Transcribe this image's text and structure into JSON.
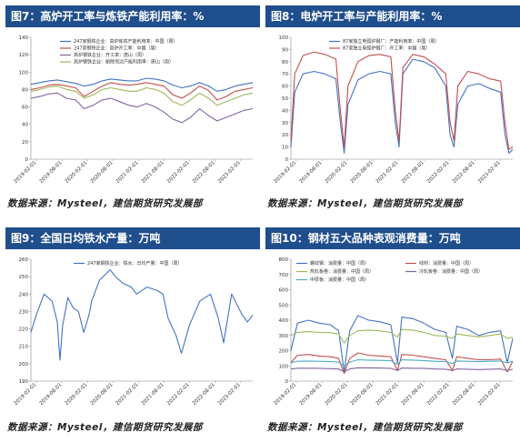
{
  "source_text": "数据来源：Mysteel，建信期货研究发展部",
  "chart_data": [
    {
      "id": "c7",
      "type": "line",
      "title": "图7：高炉开工率与炼铁产能利用率：%",
      "ylim": [
        0,
        140
      ],
      "yticks": [
        0,
        20,
        40,
        60,
        80,
        100,
        120,
        140
      ],
      "xlabels": [
        "2019-02-01",
        "2019-08-01",
        "2020-02-01",
        "2020-08-01",
        "2021-02-01",
        "2021-08-01",
        "2022-02-01",
        "2022-08-01",
        "2023-02-01"
      ],
      "x": [
        2019.08,
        2019.25,
        2019.42,
        2019.58,
        2019.75,
        2019.92,
        2020.08,
        2020.25,
        2020.42,
        2020.58,
        2020.75,
        2020.92,
        2021.08,
        2021.25,
        2021.42,
        2021.58,
        2021.75,
        2021.92,
        2022.08,
        2022.25,
        2022.42,
        2022.58,
        2022.75,
        2022.92,
        2023.08,
        2023.25
      ],
      "legend_position": "top-left",
      "grid": false,
      "series": [
        {
          "name": "247家钢铁企业：高炉炼铁产能利用率：中国（周）",
          "color": "#4472c4",
          "values": [
            86,
            88,
            90,
            91,
            89,
            87,
            84,
            86,
            90,
            92,
            91,
            90,
            90,
            93,
            92,
            90,
            85,
            82,
            84,
            88,
            84,
            78,
            80,
            84,
            86,
            88
          ]
        },
        {
          "name": "247家钢铁企业：高炉开工率：中国（周）",
          "color": "#c0504d",
          "values": [
            80,
            82,
            85,
            86,
            84,
            82,
            72,
            78,
            84,
            88,
            86,
            85,
            86,
            88,
            86,
            84,
            74,
            70,
            76,
            84,
            79,
            68,
            72,
            78,
            80,
            82
          ]
        },
        {
          "name": "高炉钢铁企业：开工率：唐山（周）",
          "color": "#8064a2",
          "values": [
            70,
            72,
            75,
            76,
            70,
            68,
            58,
            62,
            68,
            70,
            66,
            62,
            60,
            64,
            60,
            54,
            46,
            42,
            48,
            58,
            50,
            44,
            48,
            52,
            56,
            58
          ]
        },
        {
          "name": "高炉钢铁企业：剔除淘汰产能利用率：唐山（周）",
          "color": "#9bbb59",
          "values": [
            78,
            80,
            83,
            84,
            80,
            78,
            70,
            74,
            80,
            82,
            80,
            78,
            78,
            82,
            80,
            76,
            66,
            62,
            68,
            76,
            70,
            62,
            66,
            70,
            74,
            76
          ]
        }
      ]
    },
    {
      "id": "c8",
      "type": "line",
      "title": "图8：电炉开工率与产能利用率：%",
      "ylim": [
        0,
        100
      ],
      "yticks": [
        0,
        10,
        20,
        30,
        40,
        50,
        60,
        70,
        80,
        90,
        100
      ],
      "xlabels": [
        "2019-02-01",
        "2019-08-01",
        "2020-02-01",
        "2020-08-01",
        "2021-02-01",
        "2021-08-01",
        "2022-02-01",
        "2022-08-01",
        "2023-02-01"
      ],
      "x": [
        2019.08,
        2019.15,
        2019.3,
        2019.5,
        2019.7,
        2019.9,
        2019.98,
        2020.05,
        2020.12,
        2020.3,
        2020.5,
        2020.7,
        2020.9,
        2020.98,
        2021.05,
        2021.12,
        2021.3,
        2021.5,
        2021.7,
        2021.9,
        2021.98,
        2022.05,
        2022.12,
        2022.3,
        2022.5,
        2022.7,
        2022.9,
        2022.98,
        2023.05,
        2023.12
      ],
      "legend_position": "top-center",
      "grid": false,
      "series": [
        {
          "name": "87家独立电弧炉钢厂：产能利用率：中国（周）",
          "color": "#4472c4",
          "values": [
            10,
            55,
            70,
            72,
            70,
            66,
            30,
            5,
            45,
            65,
            70,
            72,
            70,
            30,
            10,
            70,
            82,
            80,
            75,
            60,
            20,
            10,
            45,
            60,
            62,
            58,
            55,
            20,
            5,
            8
          ]
        },
        {
          "name": "87家独立电弧炉钢厂：开工率：中国（周）",
          "color": "#c0504d",
          "values": [
            15,
            70,
            85,
            88,
            86,
            82,
            40,
            10,
            60,
            80,
            85,
            86,
            84,
            40,
            15,
            75,
            86,
            84,
            78,
            70,
            30,
            15,
            60,
            72,
            70,
            66,
            64,
            30,
            8,
            10
          ]
        }
      ]
    },
    {
      "id": "c9",
      "type": "line",
      "title": "图9：全国日均铁水产量：万吨",
      "ylim": [
        190,
        260
      ],
      "yticks": [
        190,
        200,
        210,
        220,
        230,
        240,
        250,
        260
      ],
      "xlabels": [
        "2019-02-01",
        "2019-08-01",
        "2020-02-01",
        "2020-08-01",
        "2021-02-01",
        "2021-08-01",
        "2022-02-01",
        "2022-08-01",
        "2023-02-01"
      ],
      "x": [
        2019.0,
        2019.1,
        2019.25,
        2019.4,
        2019.5,
        2019.55,
        2019.6,
        2019.7,
        2019.8,
        2019.9,
        2020.0,
        2020.1,
        2020.15,
        2020.3,
        2020.5,
        2020.6,
        2020.75,
        2020.9,
        2021.0,
        2021.2,
        2021.4,
        2021.5,
        2021.6,
        2021.75,
        2021.85,
        2022.0,
        2022.2,
        2022.4,
        2022.55,
        2022.65,
        2022.8,
        2023.0,
        2023.1,
        2023.2
      ],
      "legend_position": "top-center",
      "grid": false,
      "series": [
        {
          "name": "247家钢铁企业：铁水：日均产量：中国（周）",
          "color": "#4472c4",
          "values": [
            218,
            228,
            240,
            236,
            224,
            202,
            222,
            238,
            232,
            230,
            218,
            228,
            236,
            248,
            254,
            250,
            246,
            244,
            240,
            244,
            242,
            240,
            226,
            216,
            206,
            222,
            236,
            240,
            226,
            212,
            240,
            228,
            224,
            228
          ]
        }
      ]
    },
    {
      "id": "c10",
      "type": "line",
      "title": "图10：钢材五大品种表观消费量：万吨",
      "ylim": [
        0,
        800
      ],
      "yticks": [
        0,
        100,
        200,
        300,
        400,
        500,
        600,
        700,
        800
      ],
      "xlabels": [
        "2019-02-01",
        "2019-08-01",
        "2020-02-01",
        "2020-08-01",
        "2021-02-01",
        "2021-08-01",
        "2022-02-01",
        "2022-08-01",
        "2023-02-01"
      ],
      "x": [
        2019.08,
        2019.2,
        2019.4,
        2019.6,
        2019.8,
        2019.95,
        2020.05,
        2020.15,
        2020.3,
        2020.5,
        2020.7,
        2020.9,
        2021.02,
        2021.1,
        2021.3,
        2021.5,
        2021.7,
        2021.9,
        2022.02,
        2022.1,
        2022.3,
        2022.5,
        2022.7,
        2022.9,
        2023.02,
        2023.12
      ],
      "legend_position": "top",
      "grid": false,
      "series": [
        {
          "name": "螺纹钢：消费量：中国（周）",
          "color": "#4472c4",
          "values": [
            200,
            380,
            400,
            380,
            370,
            330,
            60,
            330,
            430,
            400,
            390,
            370,
            120,
            420,
            410,
            380,
            340,
            320,
            150,
            360,
            340,
            300,
            320,
            330,
            120,
            280
          ]
        },
        {
          "name": "线材：消费量：中国（周）",
          "color": "#c0504d",
          "values": [
            120,
            170,
            175,
            165,
            160,
            150,
            50,
            150,
            185,
            170,
            165,
            160,
            70,
            175,
            170,
            160,
            150,
            140,
            70,
            160,
            150,
            140,
            140,
            145,
            60,
            130
          ]
        },
        {
          "name": "热轧板卷：消费量：中国（周）",
          "color": "#9bbb59",
          "values": [
            300,
            320,
            325,
            320,
            318,
            310,
            250,
            300,
            330,
            335,
            330,
            320,
            290,
            340,
            335,
            320,
            300,
            295,
            280,
            310,
            300,
            290,
            300,
            310,
            280,
            290
          ]
        },
        {
          "name": "冷轧板卷：消费量：中国（周）",
          "color": "#8064a2",
          "values": [
            80,
            85,
            85,
            84,
            82,
            80,
            60,
            80,
            88,
            87,
            86,
            84,
            70,
            86,
            85,
            84,
            80,
            78,
            70,
            80,
            78,
            76,
            78,
            80,
            70,
            78
          ]
        },
        {
          "name": "中厚板：消费量：中国（周）",
          "color": "#4bacc6",
          "values": [
            120,
            130,
            132,
            130,
            128,
            125,
            100,
            125,
            140,
            138,
            136,
            134,
            110,
            140,
            138,
            135,
            130,
            128,
            115,
            132,
            130,
            128,
            130,
            132,
            120,
            130
          ]
        }
      ]
    }
  ]
}
